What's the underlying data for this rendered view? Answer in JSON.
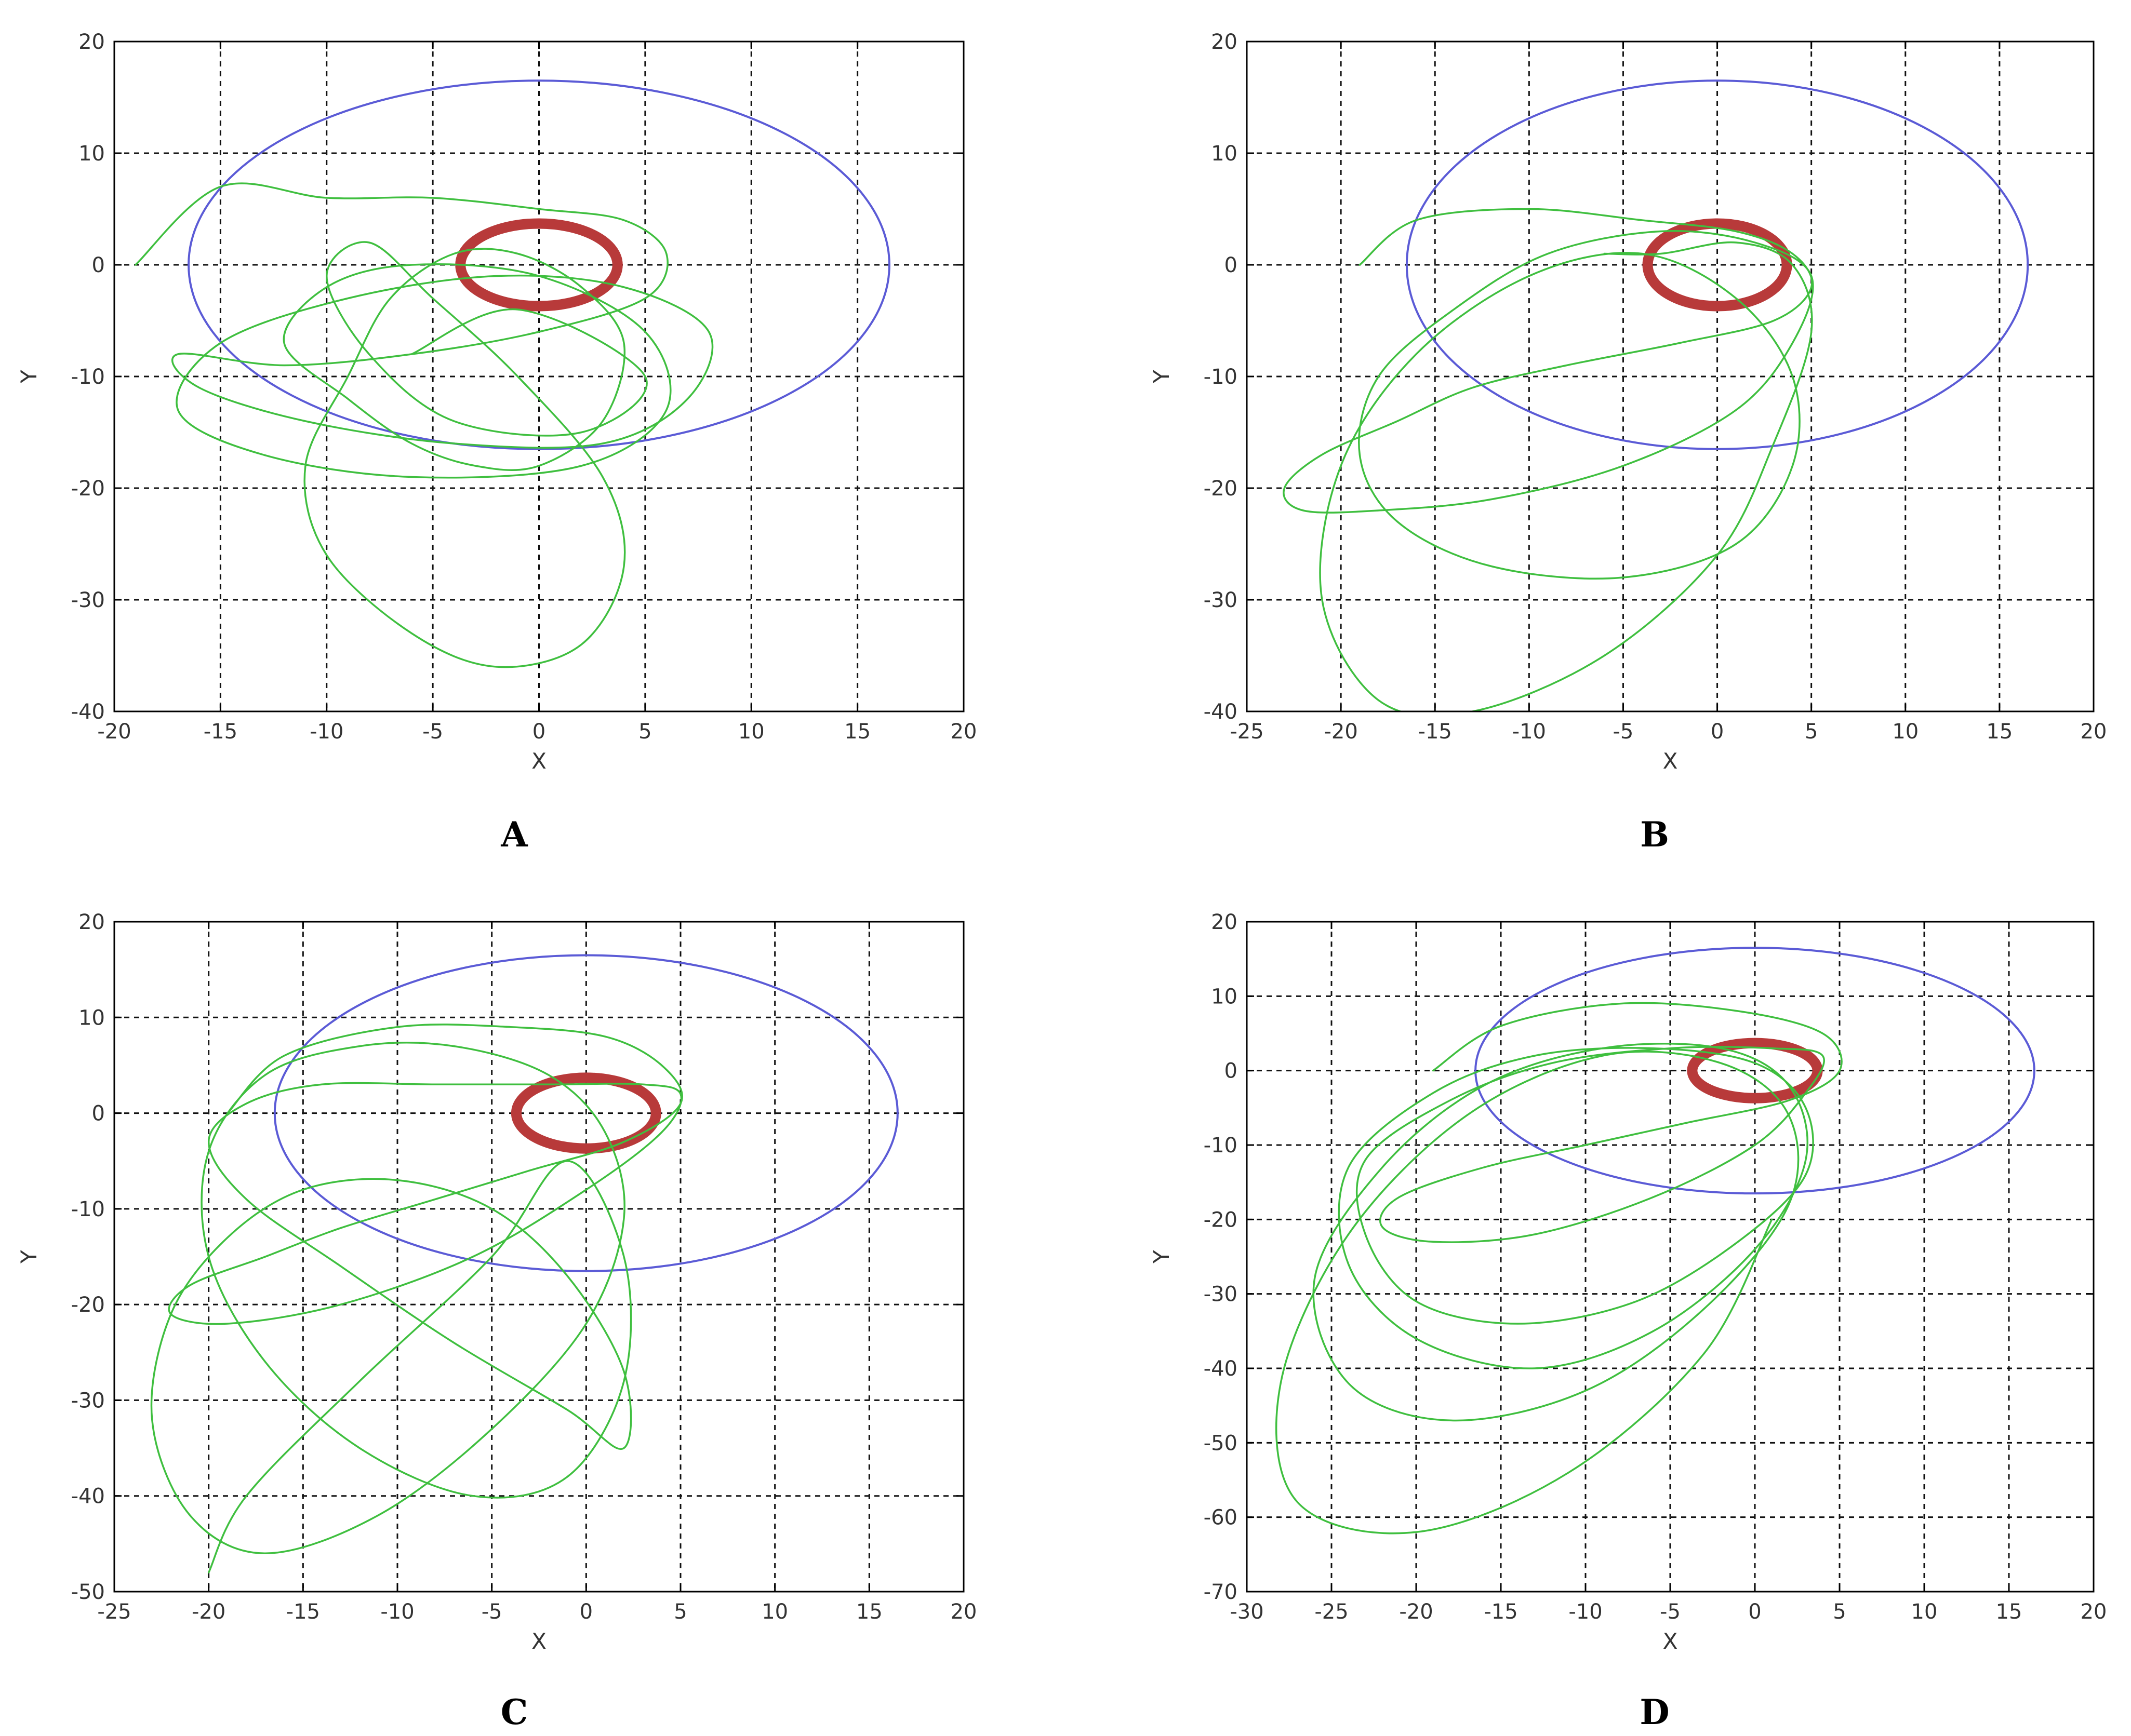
{
  "colors": {
    "outer_orbit": "#5b5bd6",
    "inner_orbit": "#b83a3a",
    "trajectory": "#3fbf3f",
    "grid": "#111111"
  },
  "chart_data": [
    {
      "type": "line",
      "panel_label": "A",
      "xlabel": "X",
      "ylabel": "Y",
      "xlim": [
        -20,
        20
      ],
      "ylim": [
        -40,
        20
      ],
      "xticks": [
        -20,
        -15,
        -10,
        -5,
        0,
        5,
        10,
        15,
        20
      ],
      "yticks": [
        -40,
        -30,
        -20,
        -10,
        0,
        10,
        20
      ],
      "grid": true,
      "series": [
        {
          "role": "outer_orbit",
          "shape": "ellipse",
          "center": [
            0,
            0
          ],
          "radii": [
            16.5,
            16.5
          ]
        },
        {
          "role": "inner_orbit",
          "shape": "ellipse",
          "center": [
            0,
            0
          ],
          "radii": [
            3.7,
            3.7
          ]
        },
        {
          "role": "trajectory",
          "x": [
            -19,
            -15,
            -10,
            -5,
            0,
            4,
            6,
            5,
            0,
            -6,
            -12,
            -17,
            -16,
            -11,
            -4,
            3,
            7,
            8,
            4,
            -2,
            -9,
            -15,
            -17,
            -13,
            -6,
            2,
            6,
            5,
            0,
            -6,
            -10,
            -12,
            -9,
            -6,
            -3,
            0,
            3,
            4,
            2,
            -1,
            -4,
            -7,
            -9,
            -11,
            -10,
            -6,
            -2,
            2,
            4,
            3,
            -1,
            -5,
            -8,
            -10,
            -8,
            -4,
            2,
            5,
            -1,
            -6
          ],
          "y": [
            0,
            7,
            6,
            6,
            5,
            4,
            1,
            -3,
            -6,
            -8,
            -9,
            -8,
            -11,
            -14,
            -16,
            -16,
            -12,
            -6,
            -2,
            -1,
            -3,
            -7,
            -13,
            -17,
            -19,
            -18,
            -13,
            -6,
            -1,
            0,
            -2,
            -7,
            -12,
            -16,
            -18,
            -18,
            -14,
            -7,
            -2,
            1,
            1,
            -3,
            -10,
            -18,
            -26,
            -33,
            -36,
            -34,
            -27,
            -19,
            -10,
            -3,
            2,
            -1,
            -8,
            -14,
            -15,
            -10,
            -4,
            -8
          ]
        }
      ]
    },
    {
      "type": "line",
      "panel_label": "B",
      "xlabel": "X",
      "ylabel": "Y",
      "xlim": [
        -25,
        20
      ],
      "ylim": [
        -40,
        20
      ],
      "xticks": [
        -25,
        -20,
        -15,
        -10,
        -5,
        0,
        5,
        10,
        15,
        20
      ],
      "yticks": [
        -40,
        -30,
        -20,
        -10,
        0,
        10,
        20
      ],
      "grid": true,
      "series": [
        {
          "role": "outer_orbit",
          "shape": "ellipse",
          "center": [
            0,
            0
          ],
          "radii": [
            16.5,
            16.5
          ]
        },
        {
          "role": "inner_orbit",
          "shape": "ellipse",
          "center": [
            0,
            0
          ],
          "radii": [
            3.7,
            3.7
          ]
        },
        {
          "role": "trajectory",
          "x": [
            -19,
            -16,
            -10,
            -4,
            1,
            4,
            5,
            3,
            -2,
            -8,
            -13,
            -17,
            -21,
            -23,
            -22,
            -18,
            -12,
            -5,
            1,
            4,
            5,
            2,
            -3,
            -9,
            -14,
            -18,
            -19,
            -17,
            -12,
            -5,
            1,
            4,
            4,
            1,
            -4,
            -10,
            -16,
            -20,
            -21,
            -18,
            -13,
            -6,
            0,
            3,
            5,
            4,
            1,
            -3,
            -6
          ],
          "y": [
            0,
            4,
            5,
            4,
            3,
            1,
            -2,
            -5,
            -7,
            -9,
            -11,
            -14,
            -17,
            -20,
            -22,
            -22,
            -21,
            -18,
            -13,
            -7,
            -1,
            2,
            3,
            1,
            -4,
            -10,
            -17,
            -23,
            -27,
            -28,
            -25,
            -18,
            -10,
            -3,
            1,
            -1,
            -8,
            -18,
            -30,
            -39,
            -40,
            -35,
            -26,
            -16,
            -6,
            0,
            2,
            1,
            1
          ]
        }
      ]
    },
    {
      "type": "line",
      "panel_label": "C",
      "xlabel": "X",
      "ylabel": "Y",
      "xlim": [
        -25,
        20
      ],
      "ylim": [
        -50,
        20
      ],
      "xticks": [
        -25,
        -20,
        -15,
        -10,
        -5,
        0,
        5,
        10,
        15,
        20
      ],
      "yticks": [
        -50,
        -40,
        -30,
        -20,
        -10,
        0,
        10,
        20
      ],
      "grid": true,
      "series": [
        {
          "role": "outer_orbit",
          "shape": "ellipse",
          "center": [
            0,
            0
          ],
          "radii": [
            16.5,
            16.5
          ]
        },
        {
          "role": "inner_orbit",
          "shape": "ellipse",
          "center": [
            0,
            0
          ],
          "radii": [
            3.7,
            3.7
          ]
        },
        {
          "role": "trajectory",
          "x": [
            -19,
            -16,
            -10,
            -4,
            1,
            4,
            5,
            2,
            -3,
            -8,
            -13,
            -17,
            -21,
            -22,
            -19,
            -13,
            -6,
            0,
            4,
            5,
            3,
            -2,
            -8,
            -14,
            -18,
            -20,
            -18,
            -13,
            -7,
            -1,
            2,
            2,
            -1,
            -5,
            -10,
            -15,
            -19,
            -22,
            -23,
            -21,
            -17,
            -11,
            -5,
            0,
            2,
            1,
            -2,
            -7,
            -12,
            -17,
            -20,
            -20,
            -17,
            -12,
            -6,
            -1,
            2,
            2,
            -1,
            -5,
            -12,
            -18,
            -20
          ],
          "y": [
            0,
            6,
            9,
            9,
            8,
            5,
            1,
            -3,
            -6,
            -9,
            -12,
            -15,
            -18,
            -21,
            -22,
            -20,
            -15,
            -8,
            -2,
            2,
            3,
            3,
            3,
            3,
            1,
            -3,
            -9,
            -16,
            -24,
            -31,
            -35,
            -27,
            -17,
            -10,
            -7,
            -8,
            -13,
            -21,
            -32,
            -42,
            -46,
            -42,
            -33,
            -22,
            -11,
            -2,
            4,
            7,
            7,
            4,
            -4,
            -15,
            -26,
            -35,
            -40,
            -38,
            -28,
            -15,
            -5,
            -15,
            -28,
            -40,
            -48
          ]
        }
      ]
    },
    {
      "type": "line",
      "panel_label": "D",
      "xlabel": "X",
      "ylabel": "Y",
      "xlim": [
        -30,
        20
      ],
      "ylim": [
        -70,
        20
      ],
      "xticks": [
        -30,
        -25,
        -20,
        -15,
        -10,
        -5,
        0,
        5,
        10,
        15,
        20
      ],
      "yticks": [
        -70,
        -60,
        -50,
        -40,
        -30,
        -20,
        -10,
        0,
        10,
        20
      ],
      "grid": true,
      "series": [
        {
          "role": "outer_orbit",
          "shape": "ellipse",
          "center": [
            0,
            0
          ],
          "radii": [
            16.5,
            16.5
          ]
        },
        {
          "role": "inner_orbit",
          "shape": "ellipse",
          "center": [
            0,
            0
          ],
          "radii": [
            3.7,
            3.7
          ]
        },
        {
          "role": "trajectory",
          "x": [
            -19,
            -15,
            -8,
            -1,
            4,
            5,
            2,
            -4,
            -10,
            -16,
            -21,
            -22,
            -19,
            -13,
            -6,
            0,
            3,
            4,
            1,
            -5,
            -12,
            -18,
            -23,
            -23,
            -20,
            -14,
            -7,
            -1,
            3,
            3,
            0,
            -6,
            -13,
            -19,
            -24,
            -24,
            -20,
            -13,
            -6,
            0,
            3,
            2,
            -2,
            -9,
            -16,
            -22,
            -26,
            -24,
            -18,
            -10,
            -3,
            2,
            2,
            -2,
            -9,
            -17,
            -24,
            -28,
            -27,
            -20,
            -11,
            -3,
            1
          ],
          "y": [
            0,
            6,
            9,
            8,
            5,
            0,
            -4,
            -7,
            -10,
            -13,
            -17,
            -21,
            -23,
            -22,
            -17,
            -10,
            -3,
            2,
            3,
            3,
            1,
            -4,
            -12,
            -22,
            -31,
            -34,
            -31,
            -23,
            -14,
            -5,
            1,
            3,
            2,
            -3,
            -13,
            -26,
            -36,
            -40,
            -35,
            -24,
            -12,
            -2,
            3,
            3,
            -2,
            -13,
            -28,
            -42,
            -47,
            -43,
            -32,
            -18,
            -6,
            1,
            2,
            -6,
            -22,
            -42,
            -58,
            -62,
            -54,
            -38,
            -20
          ]
        }
      ]
    }
  ]
}
